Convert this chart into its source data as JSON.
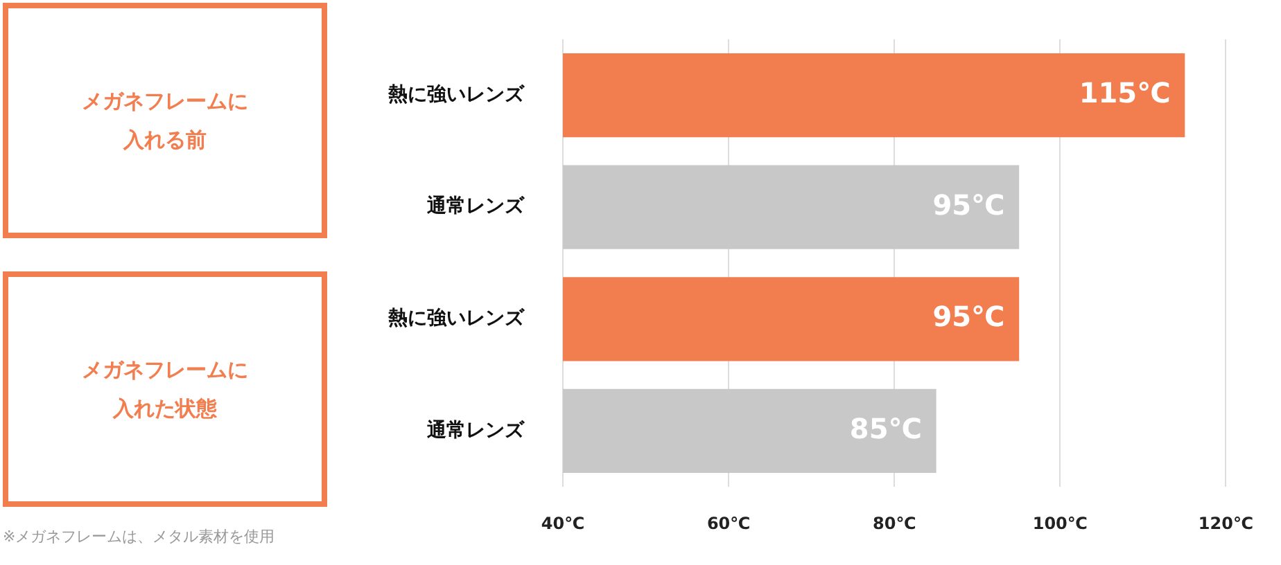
{
  "chart_data": {
    "type": "bar",
    "orientation": "horizontal",
    "categories": [
      "熱に強いレンズ",
      "通常レンズ",
      "熱に強いレンズ",
      "通常レンズ"
    ],
    "values": [
      115,
      95,
      95,
      85
    ],
    "colors": [
      "#f27d4f",
      "#c8c8c8",
      "#f27d4f",
      "#c8c8c8"
    ],
    "value_labels": [
      "115℃",
      "95℃",
      "95℃",
      "85℃"
    ],
    "xlim": [
      40,
      120
    ],
    "xticks": [
      {
        "value": 40,
        "label": "40℃"
      },
      {
        "value": 60,
        "label": "60℃"
      },
      {
        "value": 80,
        "label": "80℃"
      },
      {
        "value": 100,
        "label": "100℃"
      },
      {
        "value": 120,
        "label": "120℃"
      }
    ],
    "grid": "x",
    "legend": false,
    "annotations": [
      "メガネフレームに入れる前",
      "メガネフレームに入れた状態",
      "※メガネフレームは、メタル素材を使用"
    ]
  }
}
